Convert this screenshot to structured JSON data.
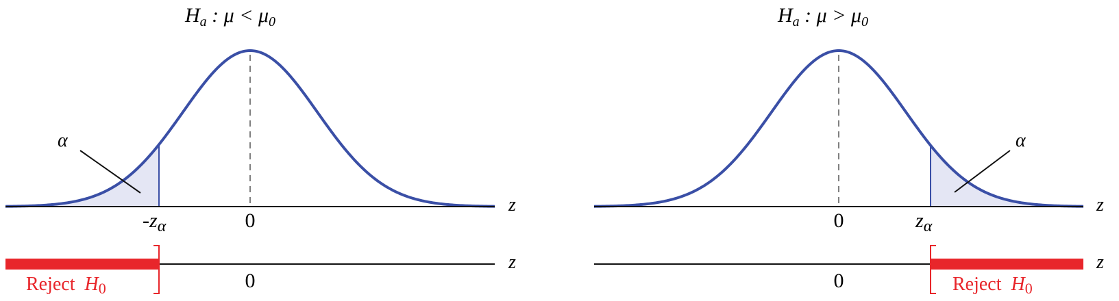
{
  "colors": {
    "curve": "#3a4fa6",
    "shade": "#e4e6f4",
    "reject": "#e8262b",
    "axis": "#111111",
    "dash": "#555555"
  },
  "panels": [
    {
      "tail": "left",
      "title": {
        "H": "H",
        "sub": "a",
        "rel": " : μ < μ",
        "rel_sub": "0"
      },
      "alpha_label": "α",
      "axis_var": "z",
      "crit_label": {
        "sign": "-",
        "z": "z",
        "sub": "α"
      },
      "center_tick": "0",
      "number_line_var": "z",
      "number_line_tick": "0",
      "reject_label": {
        "text": "Reject",
        "H": "H",
        "sub": "0"
      }
    },
    {
      "tail": "right",
      "title": {
        "H": "H",
        "sub": "a",
        "rel": " : μ > μ",
        "rel_sub": "0"
      },
      "alpha_label": "α",
      "axis_var": "z",
      "crit_label": {
        "sign": "",
        "z": "z",
        "sub": "α"
      },
      "center_tick": "0",
      "number_line_var": "z",
      "number_line_tick": "0",
      "reject_label": {
        "text": "Reject",
        "H": "H",
        "sub": "0"
      }
    }
  ]
}
